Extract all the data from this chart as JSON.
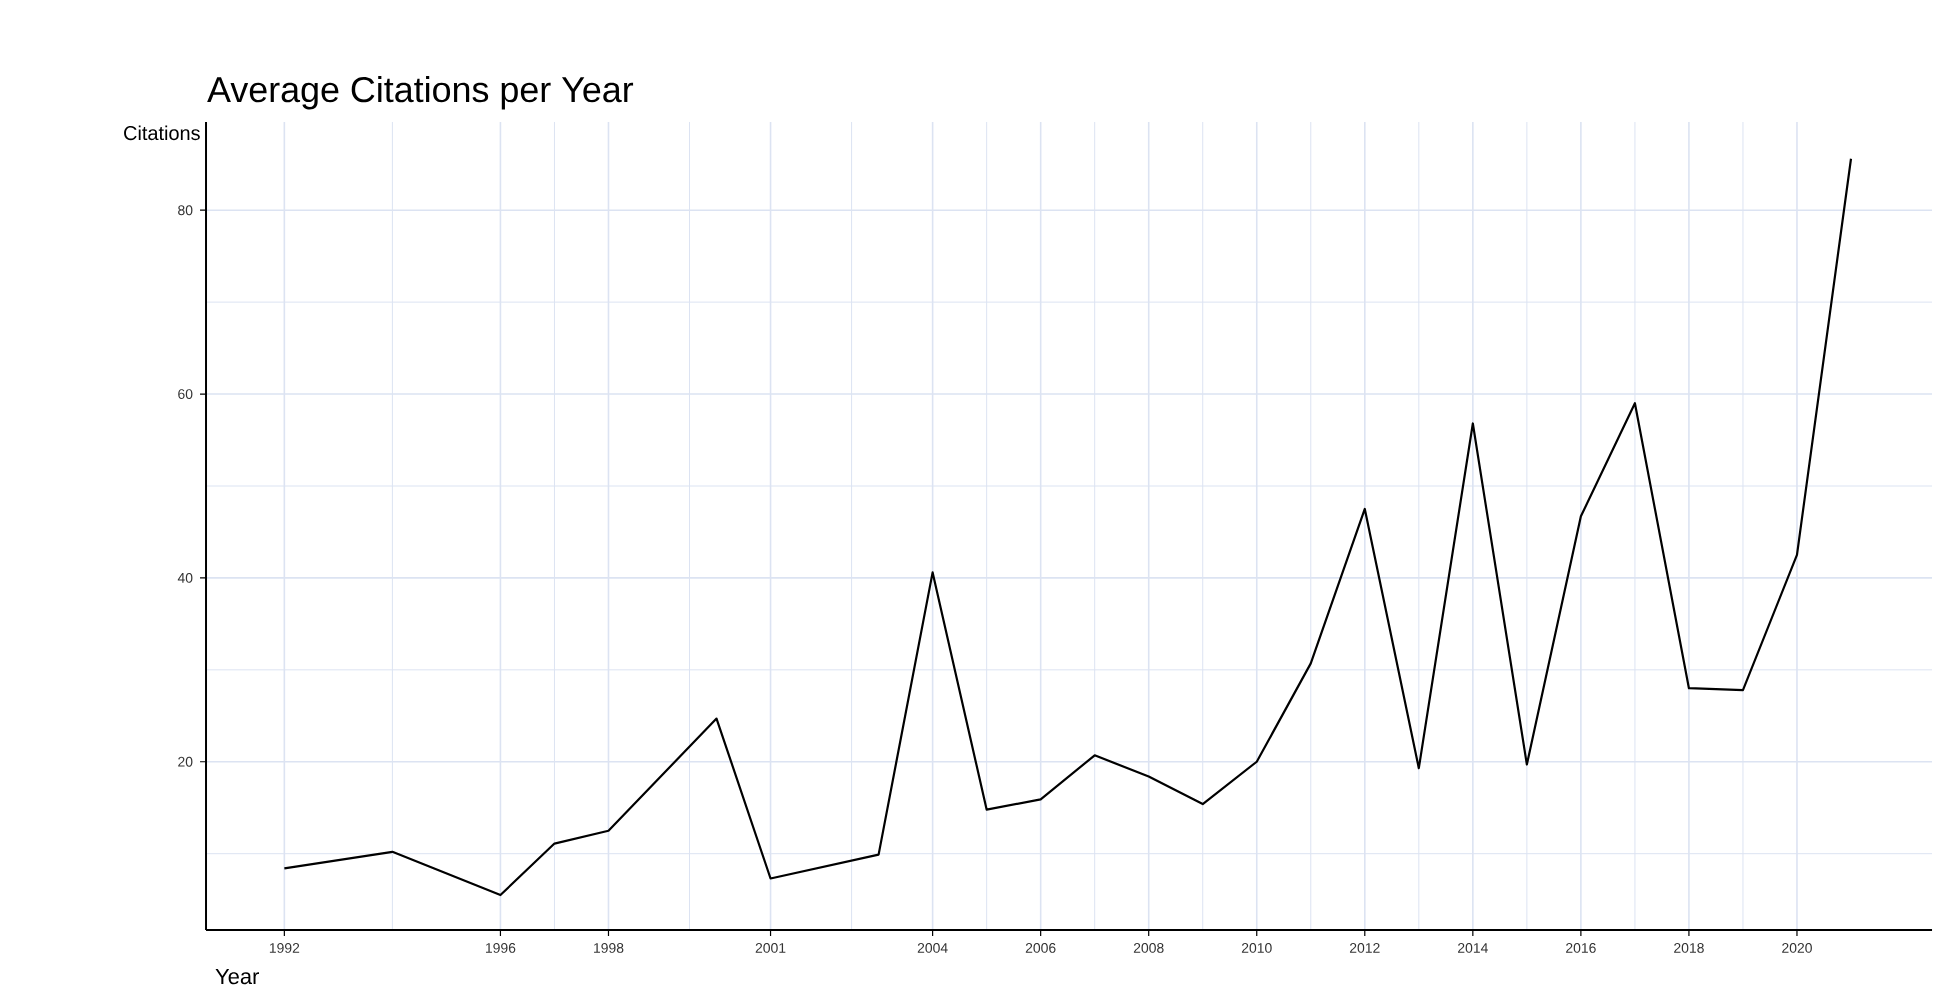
{
  "chart_data": {
    "type": "line",
    "title": "Average Citations per Year",
    "xlabel": "Year",
    "ylabel": "Citations",
    "x": [
      1992,
      1994,
      1996,
      1997,
      1998,
      2000,
      2001,
      2003,
      2004,
      2005,
      2006,
      2007,
      2008,
      2009,
      2010,
      2011,
      2012,
      2013,
      2014,
      2015,
      2016,
      2017,
      2018,
      2019,
      2020,
      2021
    ],
    "series": [
      {
        "color": "#000000",
        "values": [
          8.4,
          10.2,
          5.5,
          11.1,
          12.5,
          24.7,
          7.3,
          9.9,
          40.6,
          14.8,
          15.9,
          20.7,
          18.4,
          15.4,
          20,
          30.7,
          47.5,
          19.3,
          56.8,
          19.7,
          46.7,
          59,
          28,
          27.8,
          42.5,
          85.6
        ]
      }
    ],
    "xlim": [
      1990.55,
      2022.5
    ],
    "ylim": [
      1.7,
      89.6
    ],
    "xticks": [
      1992,
      1996,
      1998,
      2001,
      2004,
      2006,
      2008,
      2010,
      2012,
      2014,
      2016,
      2018,
      2020
    ],
    "yticks": [
      20,
      40,
      60,
      80
    ],
    "grid": true,
    "marker": "none",
    "line_style": "solid"
  }
}
